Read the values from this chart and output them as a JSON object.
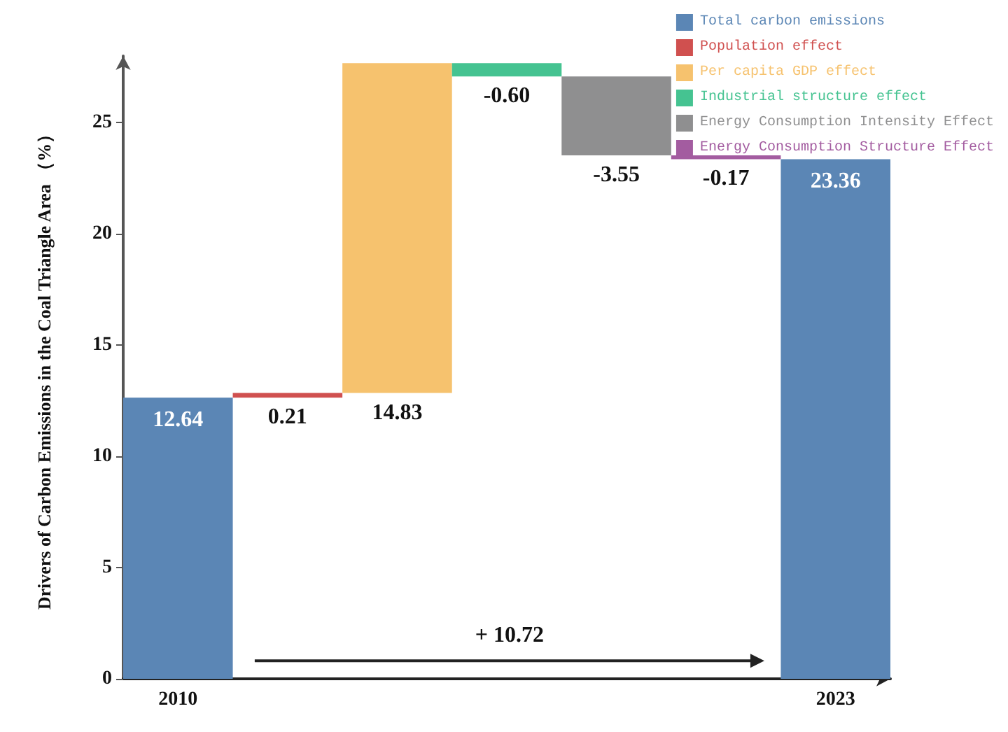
{
  "chart_data": {
    "type": "bar",
    "ylabel": "Drivers of Carbon Emissions in the Coal Triangle Area （%）",
    "categories": [
      "2010",
      null,
      null,
      null,
      null,
      null,
      "2023"
    ],
    "series": [
      {
        "name": "Total carbon emissions",
        "color": "#5b86b5",
        "values": [
          12.64,
          null,
          null,
          null,
          null,
          null,
          23.36
        ],
        "base": [
          0,
          null,
          null,
          null,
          null,
          null,
          0
        ],
        "value_labels": [
          "12.64",
          null,
          null,
          null,
          null,
          null,
          "23.36"
        ]
      },
      {
        "name": "Population effect",
        "color": "#d0504f",
        "values": [
          null,
          0.21,
          null,
          null,
          null,
          null,
          null
        ],
        "base": [
          null,
          12.64,
          null,
          null,
          null,
          null,
          null
        ],
        "value_labels": [
          null,
          "0.21",
          null,
          null,
          null,
          null,
          null
        ]
      },
      {
        "name": "Per capita GDP effect",
        "color": "#f6c26e",
        "values": [
          null,
          null,
          14.83,
          null,
          null,
          null,
          null
        ],
        "base": [
          null,
          null,
          12.85,
          null,
          null,
          null,
          null
        ],
        "value_labels": [
          null,
          null,
          "14.83",
          null,
          null,
          null,
          null
        ]
      },
      {
        "name": "Industrial structure effect",
        "color": "#45c391",
        "values": [
          null,
          null,
          null,
          -0.6,
          null,
          null,
          null
        ],
        "base": [
          null,
          null,
          null,
          27.68,
          null,
          null,
          null
        ],
        "value_labels": [
          null,
          null,
          null,
          "-0.60",
          null,
          null,
          null
        ]
      },
      {
        "name": "Energy Consumption Intensity Effect",
        "color": "#8f8f90",
        "values": [
          null,
          null,
          null,
          null,
          -3.55,
          null,
          null
        ],
        "base": [
          null,
          null,
          null,
          null,
          27.08,
          null,
          null
        ],
        "value_labels": [
          null,
          null,
          null,
          null,
          "-3.55",
          null,
          null
        ]
      },
      {
        "name": "Energy Consumption Structure Effect",
        "color": "#a35ca0",
        "values": [
          null,
          null,
          null,
          null,
          null,
          -0.17,
          null
        ],
        "base": [
          null,
          null,
          null,
          null,
          null,
          23.53,
          null
        ],
        "value_labels": [
          null,
          null,
          null,
          null,
          null,
          "-0.17",
          null
        ]
      }
    ],
    "ylim": [
      0,
      28
    ],
    "yticks": [
      0,
      5,
      10,
      15,
      20,
      25
    ],
    "legend": "top right",
    "grid": false,
    "annotations": [
      "+ 10.72"
    ]
  }
}
